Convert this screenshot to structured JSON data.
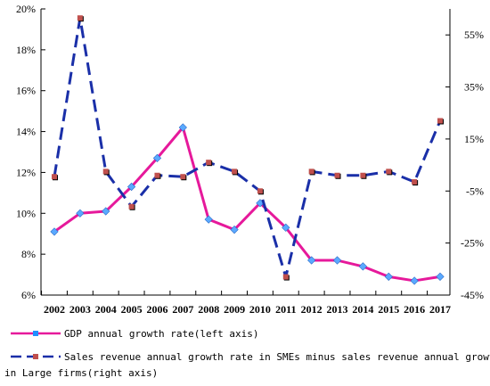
{
  "chart_data": {
    "type": "line",
    "title": "",
    "x": [
      "2002",
      "2003",
      "2004",
      "2005",
      "2006",
      "2007",
      "2008",
      "2009",
      "2010",
      "2011",
      "2012",
      "2013",
      "2014",
      "2015",
      "2016",
      "2017"
    ],
    "left_axis": {
      "ylim": [
        6,
        20
      ],
      "ticks": [
        6,
        8,
        10,
        12,
        14,
        16,
        18,
        20
      ],
      "tick_labels": [
        "6%",
        "8%",
        "10%",
        "12%",
        "14%",
        "16%",
        "18%",
        "20%"
      ]
    },
    "right_axis": {
      "ylim": [
        -45,
        65
      ],
      "ticks": [
        -45,
        -25,
        -5,
        15,
        35,
        55
      ],
      "tick_labels": [
        "-45%",
        "-25%",
        "-5%",
        "15%",
        "35%",
        "55%"
      ]
    },
    "series": [
      {
        "name": "GDP annual growth rate(left axis)",
        "axis": "left",
        "color": "#e6199b",
        "style": "solid",
        "values": [
          9.1,
          10.0,
          10.1,
          11.3,
          12.7,
          14.2,
          9.7,
          9.2,
          10.5,
          9.3,
          7.7,
          7.7,
          7.4,
          6.9,
          6.7,
          6.9
        ]
      },
      {
        "name": "Sales revenue annual growth rate in SMEs minus sales revenue annual growth rate",
        "name_line2": "in Large firms(right axis)",
        "axis": "right",
        "color": "#1a2fa8",
        "style": "dashed",
        "values": [
          0.5,
          61.5,
          2.5,
          -11,
          1,
          0.5,
          6,
          2.5,
          -5,
          -38,
          2.5,
          1,
          1,
          2.5,
          -1.5,
          22
        ]
      }
    ],
    "grid": false,
    "legend_position": "bottom"
  }
}
